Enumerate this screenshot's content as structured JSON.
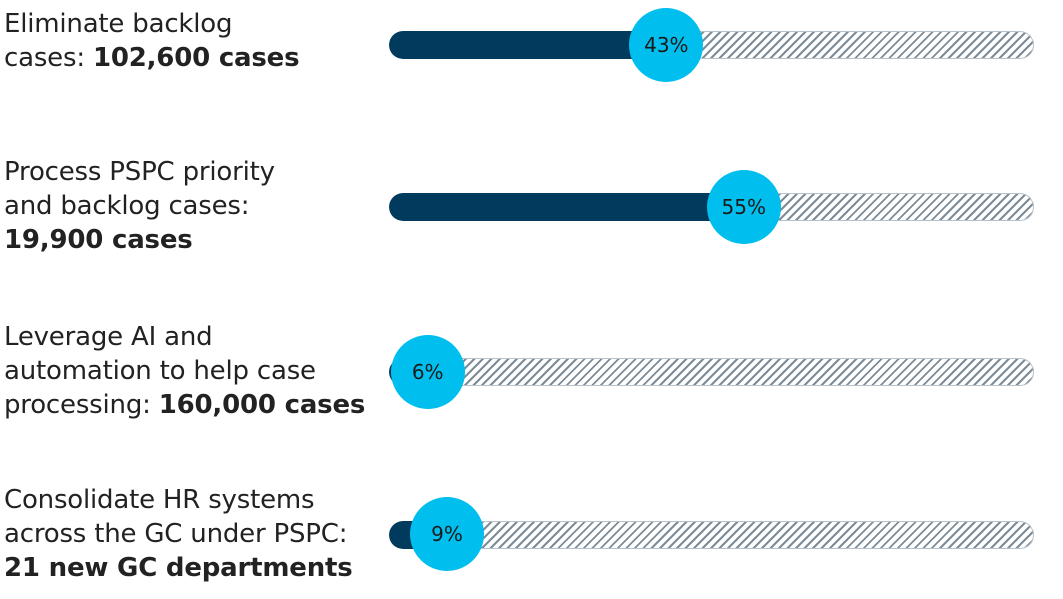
{
  "colors": {
    "fill": "#003a5d",
    "bubble": "#00bfee"
  },
  "chart_data": {
    "type": "bar",
    "orientation": "horizontal",
    "value_unit": "%",
    "xlim": [
      0,
      100
    ],
    "rows": [
      {
        "label_prefix": "Eliminate backlog",
        "label_line2": "cases: ",
        "label_bold": "102,600 cases",
        "value": 43,
        "value_label": "43%"
      },
      {
        "label_prefix": "Process PSPC priority",
        "label_line2": "and backlog cases:",
        "label_bold": "19,900 cases",
        "value": 55,
        "value_label": "55%"
      },
      {
        "label_prefix": "Leverage AI and",
        "label_line2": "automation to help case",
        "label_line3": "processing: ",
        "label_bold": "160,000 cases",
        "value": 6,
        "value_label": "6%"
      },
      {
        "label_prefix": "Consolidate HR systems",
        "label_line2": "across the GC under PSPC:",
        "label_bold": "21 new GC departments",
        "value": 9,
        "value_label": "9%"
      }
    ]
  }
}
